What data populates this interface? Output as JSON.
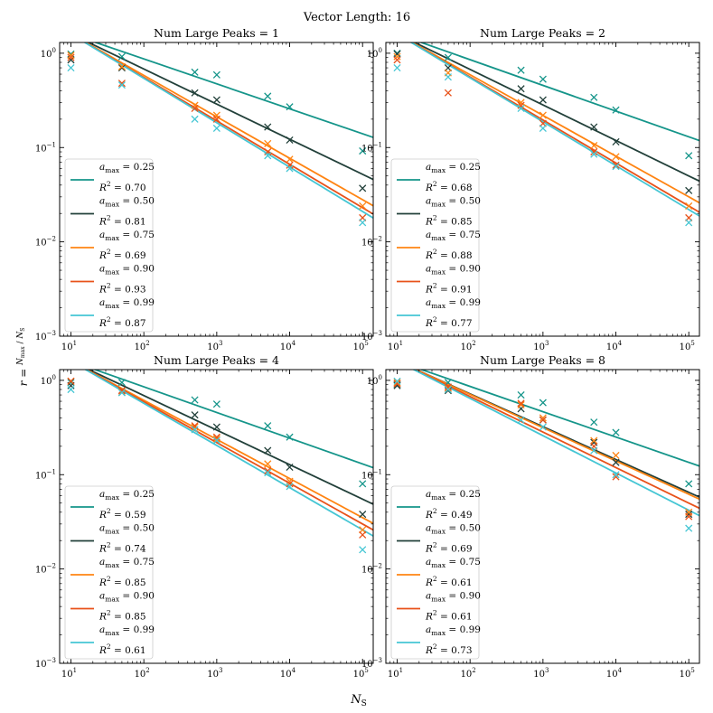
{
  "chart_data": {
    "type": "scatter",
    "title": "Vector Length: 16",
    "xlabel": "N_S",
    "ylabel": "r = N_max / N_S",
    "xscale": "log",
    "yscale": "log",
    "xlim": [
      7,
      140000
    ],
    "ylim": [
      0.001,
      1.3
    ],
    "x_ticks": [
      {
        "value": 10,
        "base": "10",
        "exp": "1"
      },
      {
        "value": 100,
        "base": "10",
        "exp": "2"
      },
      {
        "value": 1000,
        "base": "10",
        "exp": "3"
      },
      {
        "value": 10000,
        "base": "10",
        "exp": "4"
      },
      {
        "value": 100000,
        "base": "10",
        "exp": "5"
      }
    ],
    "y_ticks": [
      {
        "value": 0.001,
        "base": "10",
        "exp": "−3"
      },
      {
        "value": 0.01,
        "base": "10",
        "exp": "−2"
      },
      {
        "value": 0.1,
        "base": "10",
        "exp": "−1"
      },
      {
        "value": 1,
        "base": "10",
        "exp": "0"
      }
    ],
    "legend_placement": "lower-left",
    "x": [
      10,
      50,
      500,
      1000,
      5000,
      10000,
      100000
    ],
    "series_meta": [
      {
        "a_label": "0.25",
        "color": "#15958a"
      },
      {
        "a_label": "0.50",
        "color": "#22403a"
      },
      {
        "a_label": "0.75",
        "color": "#ff8412"
      },
      {
        "a_label": "0.90",
        "color": "#e8521a"
      },
      {
        "a_label": "0.99",
        "color": "#45c6d4"
      }
    ],
    "panels": [
      {
        "title": "Num Large Peaks = 1",
        "series": [
          {
            "a": "0.25",
            "r2": "0.70",
            "values": [
              0.98,
              0.92,
              0.63,
              0.59,
              0.35,
              0.27,
              0.092
            ],
            "fit": [
              1.6,
              0.14
            ]
          },
          {
            "a": "0.50",
            "r2": "0.81",
            "values": [
              0.85,
              0.7,
              0.38,
              0.32,
              0.165,
              0.12,
              0.037
            ],
            "fit": [
              1.6,
              0.052
            ]
          },
          {
            "a": "0.75",
            "r2": "0.69",
            "values": [
              0.95,
              0.72,
              0.28,
              0.22,
              0.11,
              0.075,
              0.024
            ],
            "fit": [
              1.6,
              0.028
            ]
          },
          {
            "a": "0.90",
            "r2": "0.93",
            "values": [
              0.9,
              0.48,
              0.26,
              0.2,
              0.09,
              0.065,
              0.018
            ],
            "fit": [
              1.6,
              0.023
            ]
          },
          {
            "a": "0.99",
            "r2": "0.87",
            "values": [
              0.7,
              0.46,
              0.2,
              0.16,
              0.082,
              0.06,
              0.016
            ],
            "fit": [
              1.6,
              0.021
            ]
          }
        ]
      },
      {
        "title": "Num Large Peaks = 2",
        "series": [
          {
            "a": "0.25",
            "r2": "0.68",
            "values": [
              1.0,
              0.9,
              0.66,
              0.53,
              0.34,
              0.25,
              0.082
            ],
            "fit": [
              1.6,
              0.13
            ]
          },
          {
            "a": "0.50",
            "r2": "0.85",
            "values": [
              0.98,
              0.7,
              0.42,
              0.32,
              0.165,
              0.115,
              0.035
            ],
            "fit": [
              1.6,
              0.05
            ]
          },
          {
            "a": "0.75",
            "r2": "0.88",
            "values": [
              0.92,
              0.62,
              0.3,
              0.22,
              0.105,
              0.08,
              0.024
            ],
            "fit": [
              1.6,
              0.03
            ]
          },
          {
            "a": "0.90",
            "r2": "0.91",
            "values": [
              0.85,
              0.38,
              0.28,
              0.18,
              0.09,
              0.065,
              0.018
            ],
            "fit": [
              1.6,
              0.024
            ]
          },
          {
            "a": "0.99",
            "r2": "0.77",
            "values": [
              0.7,
              0.56,
              0.26,
              0.16,
              0.085,
              0.063,
              0.016
            ],
            "fit": [
              1.6,
              0.022
            ]
          }
        ]
      },
      {
        "title": "Num Large Peaks = 4",
        "series": [
          {
            "a": "0.25",
            "r2": "0.59",
            "values": [
              0.95,
              0.95,
              0.62,
              0.56,
              0.33,
              0.25,
              0.08
            ],
            "fit": [
              1.6,
              0.13
            ]
          },
          {
            "a": "0.50",
            "r2": "0.74",
            "values": [
              0.88,
              0.78,
              0.43,
              0.32,
              0.18,
              0.12,
              0.038
            ],
            "fit": [
              1.6,
              0.055
            ]
          },
          {
            "a": "0.75",
            "r2": "0.85",
            "values": [
              0.98,
              0.75,
              0.32,
              0.24,
              0.13,
              0.085,
              0.026
            ],
            "fit": [
              1.6,
              0.035
            ]
          },
          {
            "a": "0.90",
            "r2": "0.85",
            "values": [
              0.98,
              0.78,
              0.33,
              0.25,
              0.11,
              0.08,
              0.023
            ],
            "fit": [
              1.6,
              0.03
            ]
          },
          {
            "a": "0.99",
            "r2": "0.61",
            "values": [
              0.8,
              0.74,
              0.3,
              0.23,
              0.105,
              0.075,
              0.016
            ],
            "fit": [
              1.6,
              0.026
            ]
          }
        ]
      },
      {
        "title": "Num Large Peaks = 8",
        "series": [
          {
            "a": "0.25",
            "r2": "0.49",
            "values": [
              0.9,
              0.95,
              0.7,
              0.58,
              0.36,
              0.28,
              0.08
            ],
            "fit": [
              1.6,
              0.135
            ]
          },
          {
            "a": "0.50",
            "r2": "0.69",
            "values": [
              0.88,
              0.78,
              0.5,
              0.38,
              0.22,
              0.135,
              0.038
            ],
            "fit": [
              1.6,
              0.065
            ]
          },
          {
            "a": "0.75",
            "r2": "0.61",
            "values": [
              0.95,
              0.82,
              0.55,
              0.4,
              0.23,
              0.16,
              0.04
            ],
            "fit": [
              1.6,
              0.062
            ]
          },
          {
            "a": "0.90",
            "r2": "0.61",
            "values": [
              0.92,
              0.85,
              0.57,
              0.38,
              0.2,
              0.095,
              0.036
            ],
            "fit": [
              1.6,
              0.05
            ]
          },
          {
            "a": "0.99",
            "r2": "0.73",
            "values": [
              0.98,
              0.8,
              0.38,
              0.32,
              0.18,
              0.1,
              0.027
            ],
            "fit": [
              1.6,
              0.042
            ]
          }
        ]
      }
    ]
  }
}
